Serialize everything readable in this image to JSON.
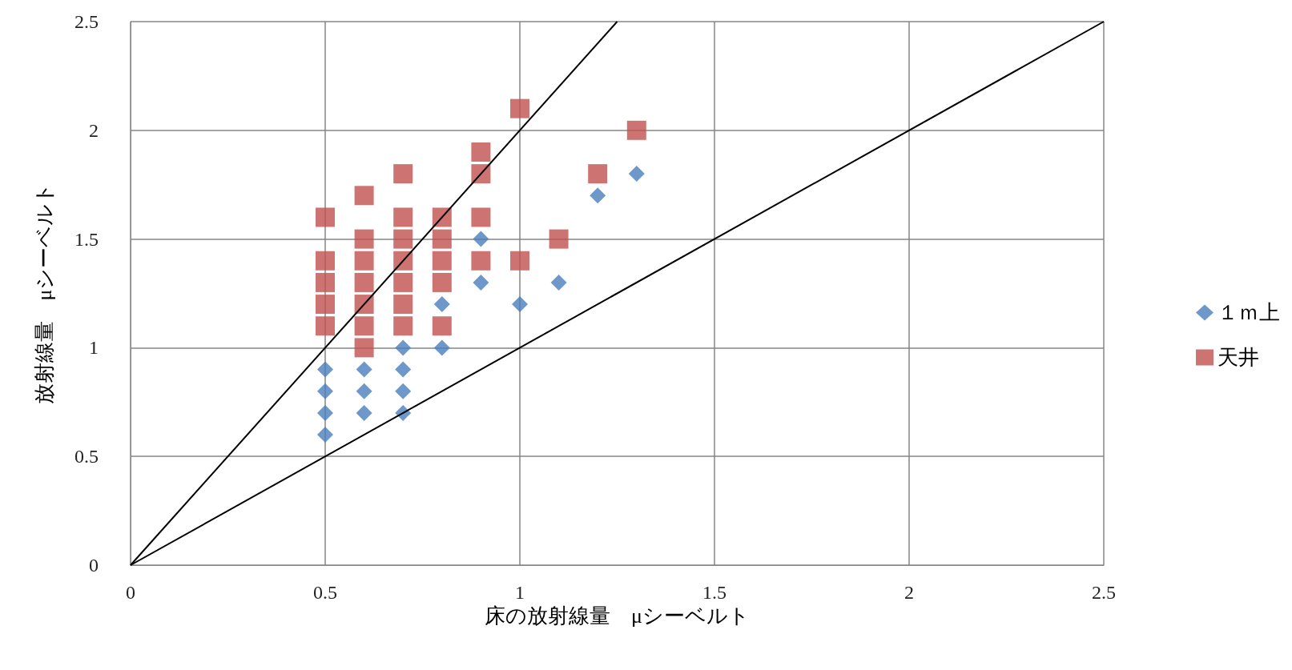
{
  "chart_data": {
    "type": "scatter",
    "xlabel": "床の放射線量　μシーベルト",
    "ylabel": "放射線量　μシーベルト",
    "xlim": [
      0,
      2.5
    ],
    "ylim": [
      0,
      2.5
    ],
    "xticks": [
      0,
      0.5,
      1,
      1.5,
      2,
      2.5
    ],
    "yticks": [
      0,
      0.5,
      1,
      1.5,
      2,
      2.5
    ],
    "grid": true,
    "legend": "right",
    "series": [
      {
        "name": "１ｍ上",
        "color": "#4a7ebb",
        "marker": "diamond",
        "x": [
          0.5,
          0.5,
          0.5,
          0.5,
          0.6,
          0.6,
          0.6,
          0.7,
          0.7,
          0.7,
          0.7,
          0.8,
          0.8,
          0.9,
          0.9,
          1.0,
          1.1,
          1.2,
          1.3
        ],
        "values": [
          0.6,
          0.7,
          0.8,
          0.9,
          0.7,
          0.8,
          0.9,
          0.7,
          0.8,
          0.9,
          1.0,
          1.0,
          1.2,
          1.3,
          1.5,
          1.2,
          1.3,
          1.7,
          1.8
        ]
      },
      {
        "name": "天井",
        "color": "#c0504d",
        "marker": "square",
        "x": [
          0.5,
          0.5,
          0.5,
          0.5,
          0.5,
          0.6,
          0.6,
          0.6,
          0.6,
          0.6,
          0.6,
          0.6,
          0.7,
          0.7,
          0.7,
          0.7,
          0.7,
          0.7,
          0.7,
          0.8,
          0.8,
          0.8,
          0.8,
          0.8,
          0.9,
          0.9,
          0.9,
          0.9,
          1.0,
          1.0,
          1.1,
          1.2,
          1.3
        ],
        "values": [
          1.1,
          1.2,
          1.3,
          1.4,
          1.6,
          1.0,
          1.1,
          1.2,
          1.3,
          1.4,
          1.5,
          1.7,
          1.1,
          1.2,
          1.3,
          1.4,
          1.5,
          1.6,
          1.8,
          1.1,
          1.3,
          1.4,
          1.5,
          1.6,
          1.4,
          1.6,
          1.8,
          1.9,
          1.4,
          2.1,
          1.5,
          1.8,
          2.0
        ]
      },
      {
        "type": "line",
        "color": "#000000",
        "marker": "none",
        "x": [
          0,
          1.25
        ],
        "values": [
          0,
          2.5
        ]
      },
      {
        "type": "line",
        "color": "#000000",
        "marker": "none",
        "x": [
          0,
          2.5
        ],
        "values": [
          0,
          2.5
        ]
      }
    ]
  }
}
